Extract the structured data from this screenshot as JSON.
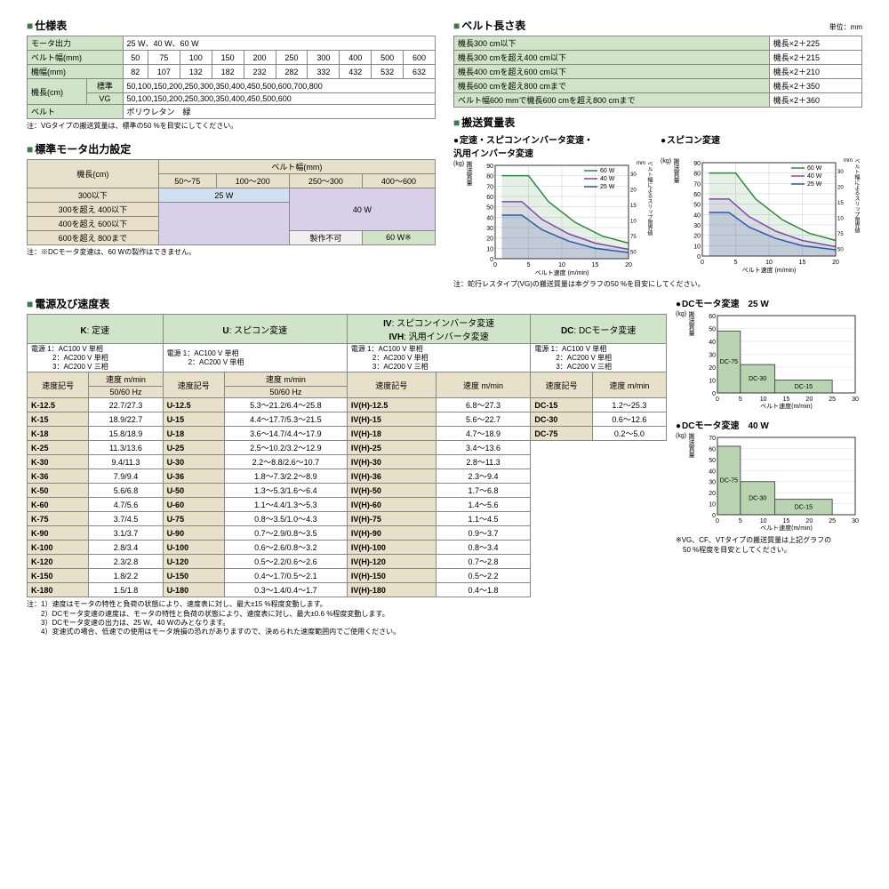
{
  "spec": {
    "title": "仕様表",
    "rows": [
      {
        "label": "モータ出力",
        "value": "25 W、40 W、60 W"
      },
      {
        "label": "ベルト幅(mm)",
        "cells": [
          "50",
          "75",
          "100",
          "150",
          "200",
          "250",
          "300",
          "400",
          "500",
          "600"
        ]
      },
      {
        "label": "機幅(mm)",
        "cells": [
          "82",
          "107",
          "132",
          "182",
          "232",
          "282",
          "332",
          "432",
          "532",
          "632"
        ]
      },
      {
        "label": "機長(cm)",
        "sub1": "標準",
        "val1": "50,100,150,200,250,300,350,400,450,500,600,700,800",
        "sub2": "VG",
        "val2": "50,100,150,200,250,300,350,400,450,500,600"
      },
      {
        "label": "ベルト",
        "value": "ポリウレタン　緑"
      }
    ],
    "note": "注：VGタイプの搬送質量は、標準の50 %を目安にしてください。"
  },
  "beltlen": {
    "title": "ベルト長さ表",
    "unit": "単位：mm",
    "rows": [
      [
        "機長300 cm以下",
        "機長×2＋225"
      ],
      [
        "機長300 cmを超え400 cm以下",
        "機長×2＋215"
      ],
      [
        "機長400 cmを超え600 cm以下",
        "機長×2＋210"
      ],
      [
        "機長600 cmを超え800 cmまで",
        "機長×2＋350"
      ],
      [
        "ベルト幅600 mmで機長600 cmを超え800 cmまで",
        "機長×2＋360"
      ]
    ]
  },
  "motor_out": {
    "title": "標準モータ出力設定",
    "col_hdr": "ベルト幅(mm)",
    "row_hdr": "機長(cm)",
    "cols": [
      "50～75",
      "100～200",
      "250～300",
      "400～600"
    ],
    "rows": [
      "300以下",
      "300を超え 400以下",
      "400を超え 600以下",
      "600を超え 800まで"
    ],
    "w25": "25 W",
    "w40": "40 W",
    "w60": "60 W※",
    "notmake": "製作不可",
    "note": "注：※DCモータ変速は、60 Wの製作はできません。"
  },
  "mass": {
    "title": "搬送質量表",
    "chart1_title": "定速・スピコンインバータ変速・\n汎用インバータ変速",
    "chart2_title": "スピコン変速",
    "legend": [
      "60 W",
      "40 W",
      "25 W"
    ],
    "legend_colors": [
      "#2a8a3a",
      "#7a4aaa",
      "#2a5aaa"
    ],
    "ylabel": "搬送質量",
    "yunit": "(kg)",
    "y2label": "ベルト幅によるスリップ限界値",
    "y2unit": "mm",
    "xlabel": "ベルト速度 (m/min)",
    "yticks": [
      0,
      10,
      20,
      30,
      40,
      50,
      60,
      70,
      80,
      90
    ],
    "y2ticks": [
      50,
      75,
      100,
      150,
      200,
      300
    ],
    "xticks": [
      0,
      5,
      10,
      15,
      20
    ],
    "note": "注：蛇行レスタイプ(VG)の搬送質量は本グラフの50 %を目安にしてください。"
  },
  "speed": {
    "title": "電源及び速度表",
    "groups": [
      {
        "code": "K",
        "name": "定速",
        "power": [
          "電源 1：AC100 V 単相",
          "2：AC200 V 単相",
          "3：AC200 V 三相"
        ],
        "sub": [
          "速度記号",
          "速度 m/min",
          "50/60 Hz"
        ]
      },
      {
        "code": "U",
        "name": "スピコン変速",
        "power": [
          "電源 1：AC100 V 単相",
          "2：AC200 V 単相"
        ],
        "sub": [
          "速度記号",
          "速度 m/min",
          "50/60 Hz"
        ]
      },
      {
        "code": "IV",
        "name": "スピコンインバータ変速",
        "code2": "IVH",
        "name2": "汎用インバータ変速",
        "power": [
          "電源 1：AC100 V 単相",
          "2：AC200 V 単相",
          "3：AC200 V 三相"
        ],
        "sub": [
          "速度記号",
          "速度 m/min"
        ]
      },
      {
        "code": "DC",
        "name": "DCモータ変速",
        "power": [
          "電源 1：AC100 V 単相",
          "2：AC200 V 単相",
          "3：AC200 V 三相"
        ],
        "sub": [
          "速度記号",
          "速度 m/min"
        ]
      }
    ],
    "rows": [
      [
        "K-12.5",
        "22.7/27.3",
        "U-12.5",
        "5.3～21.2/6.4～25.8",
        "IV(H)-12.5",
        "6.8～27.3",
        "DC-15",
        "1.2～25.3"
      ],
      [
        "K-15",
        "18.9/22.7",
        "U-15",
        "4.4～17.7/5.3～21.5",
        "IV(H)-15",
        "5.6～22.7",
        "DC-30",
        "0.6～12.6"
      ],
      [
        "K-18",
        "15.8/18.9",
        "U-18",
        "3.6～14.7/4.4～17.9",
        "IV(H)-18",
        "4.7～18.9",
        "DC-75",
        "0.2～5.0"
      ],
      [
        "K-25",
        "11.3/13.6",
        "U-25",
        "2.5～10.2/3.2～12.9",
        "IV(H)-25",
        "3.4～13.6"
      ],
      [
        "K-30",
        "9.4/11.3",
        "U-30",
        "2.2～8.8/2.6～10.7",
        "IV(H)-30",
        "2.8～11.3"
      ],
      [
        "K-36",
        "7.9/9.4",
        "U-36",
        "1.8～7.3/2.2～8.9",
        "IV(H)-36",
        "2.3～9.4"
      ],
      [
        "K-50",
        "5.6/6.8",
        "U-50",
        "1.3～5.3/1.6～6.4",
        "IV(H)-50",
        "1.7～6.8"
      ],
      [
        "K-60",
        "4.7/5.6",
        "U-60",
        "1.1～4.4/1.3～5.3",
        "IV(H)-60",
        "1.4～5.6"
      ],
      [
        "K-75",
        "3.7/4.5",
        "U-75",
        "0.8～3.5/1.0～4.3",
        "IV(H)-75",
        "1.1～4.5"
      ],
      [
        "K-90",
        "3.1/3.7",
        "U-90",
        "0.7～2.9/0.8～3.5",
        "IV(H)-90",
        "0.9～3.7"
      ],
      [
        "K-100",
        "2.8/3.4",
        "U-100",
        "0.6～2.6/0.8～3.2",
        "IV(H)-100",
        "0.8～3.4"
      ],
      [
        "K-120",
        "2.3/2.8",
        "U-120",
        "0.5～2.2/0.6～2.6",
        "IV(H)-120",
        "0.7～2.8"
      ],
      [
        "K-150",
        "1.8/2.2",
        "U-150",
        "0.4～1.7/0.5～2.1",
        "IV(H)-150",
        "0.5～2.2"
      ],
      [
        "K-180",
        "1.5/1.8",
        "U-180",
        "0.3～1.4/0.4～1.7",
        "IV(H)-180",
        "0.4～1.8"
      ]
    ],
    "notes": [
      "注：1）速度はモータの特性と負荷の状態により、速度表に対し、最大±15 %程度変動します。",
      "　　2）DCモータ変速の速度は、モータの特性と負荷の状態により、速度表に対し、最大±0.6 %程度変動します。",
      "　　3）DCモータ変速の出力は、25 W、40 Wのみとなります。",
      "　　4）変速式の場合、低速での使用はモータ焼損の恐れがありますので、決められた速度範囲内でご使用ください。"
    ]
  },
  "dc": {
    "chart1": {
      "title": "DCモータ変速　25 W",
      "bars": [
        {
          "label": "DC-75",
          "x": 0,
          "w": 5,
          "h": 48
        },
        {
          "label": "DC-30",
          "x": 5,
          "w": 7.5,
          "h": 22
        },
        {
          "label": "DC-15",
          "x": 12.5,
          "w": 12.5,
          "h": 10
        }
      ],
      "ymax": 60,
      "yticks": [
        0,
        10,
        20,
        30,
        40,
        50,
        60
      ],
      "xticks": [
        0,
        5,
        10,
        15,
        20,
        25,
        30
      ]
    },
    "chart2": {
      "title": "DCモータ変速　40 W",
      "bars": [
        {
          "label": "DC-75",
          "x": 0,
          "w": 5,
          "h": 62
        },
        {
          "label": "DC-30",
          "x": 5,
          "w": 7.5,
          "h": 30
        },
        {
          "label": "DC-15",
          "x": 12.5,
          "w": 12.5,
          "h": 14
        }
      ],
      "ymax": 70,
      "yticks": [
        0,
        10,
        20,
        30,
        40,
        50,
        60,
        70
      ],
      "xticks": [
        0,
        5,
        10,
        15,
        20,
        25,
        30
      ]
    },
    "ylabel": "搬送質量",
    "yunit": "(kg)",
    "xlabel": "ベルト速度(m/min)",
    "note": "※VG、CF、VTタイプの搬送質量は上記グラフの\n　50 %程度を目安としてください。"
  }
}
